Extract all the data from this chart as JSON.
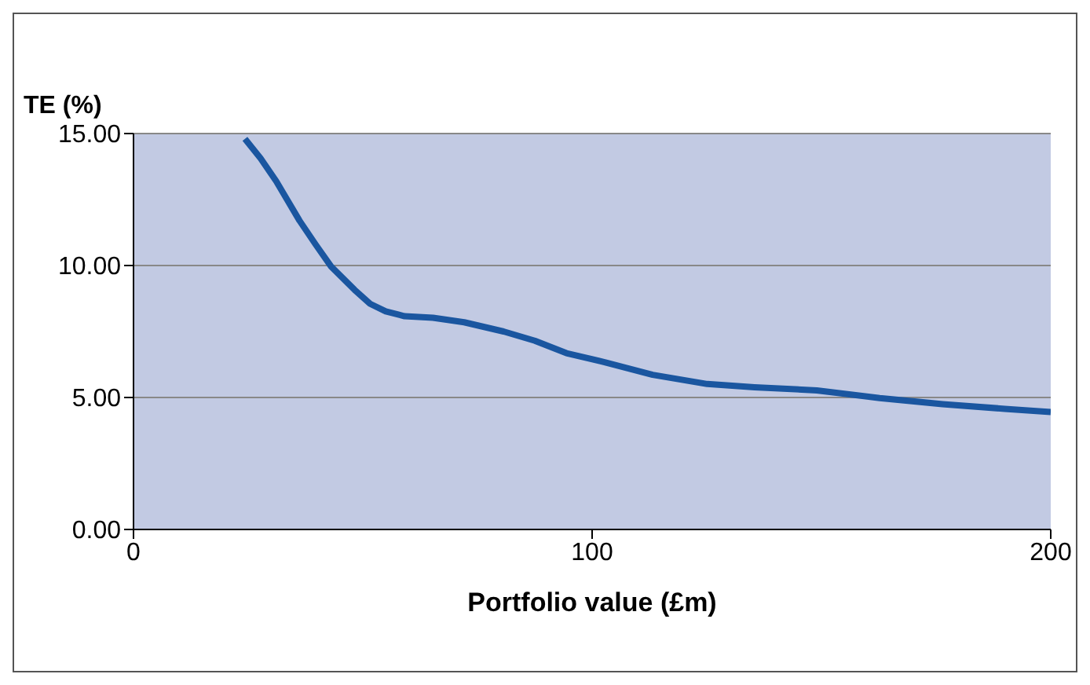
{
  "chart_data": {
    "type": "line",
    "xlabel": "Portfolio value (£m)",
    "ylabel": "TE (%)",
    "x": [
      24.3,
      27.7,
      31.1,
      36.2,
      39.7,
      43.1,
      48.2,
      51.6,
      55,
      59.1,
      65.3,
      72.1,
      80.7,
      87.5,
      94.4,
      102.9,
      113.2,
      125.1,
      135.4,
      149,
      162.7,
      176.4,
      190,
      200
    ],
    "series": [
      {
        "color": "#1a56a0",
        "values": [
          14.8,
          14.06,
          13.2,
          11.7,
          10.8,
          9.96,
          9.08,
          8.55,
          8.26,
          8.08,
          8.02,
          7.85,
          7.5,
          7.15,
          6.68,
          6.33,
          5.86,
          5.51,
          5.39,
          5.27,
          4.98,
          4.75,
          4.57,
          4.45
        ]
      }
    ],
    "xlim": [
      0,
      200
    ],
    "xticks": [
      0,
      100,
      200
    ],
    "ylim": [
      0,
      15
    ],
    "yticks": [
      {
        "value": 0,
        "label": "0.00"
      },
      {
        "value": 5,
        "label": "5.00"
      },
      {
        "value": 10,
        "label": "10.00"
      },
      {
        "value": 15,
        "label": "15.00"
      }
    ],
    "grid": "y",
    "legend": false,
    "marker": "none",
    "line_style": "solid"
  }
}
